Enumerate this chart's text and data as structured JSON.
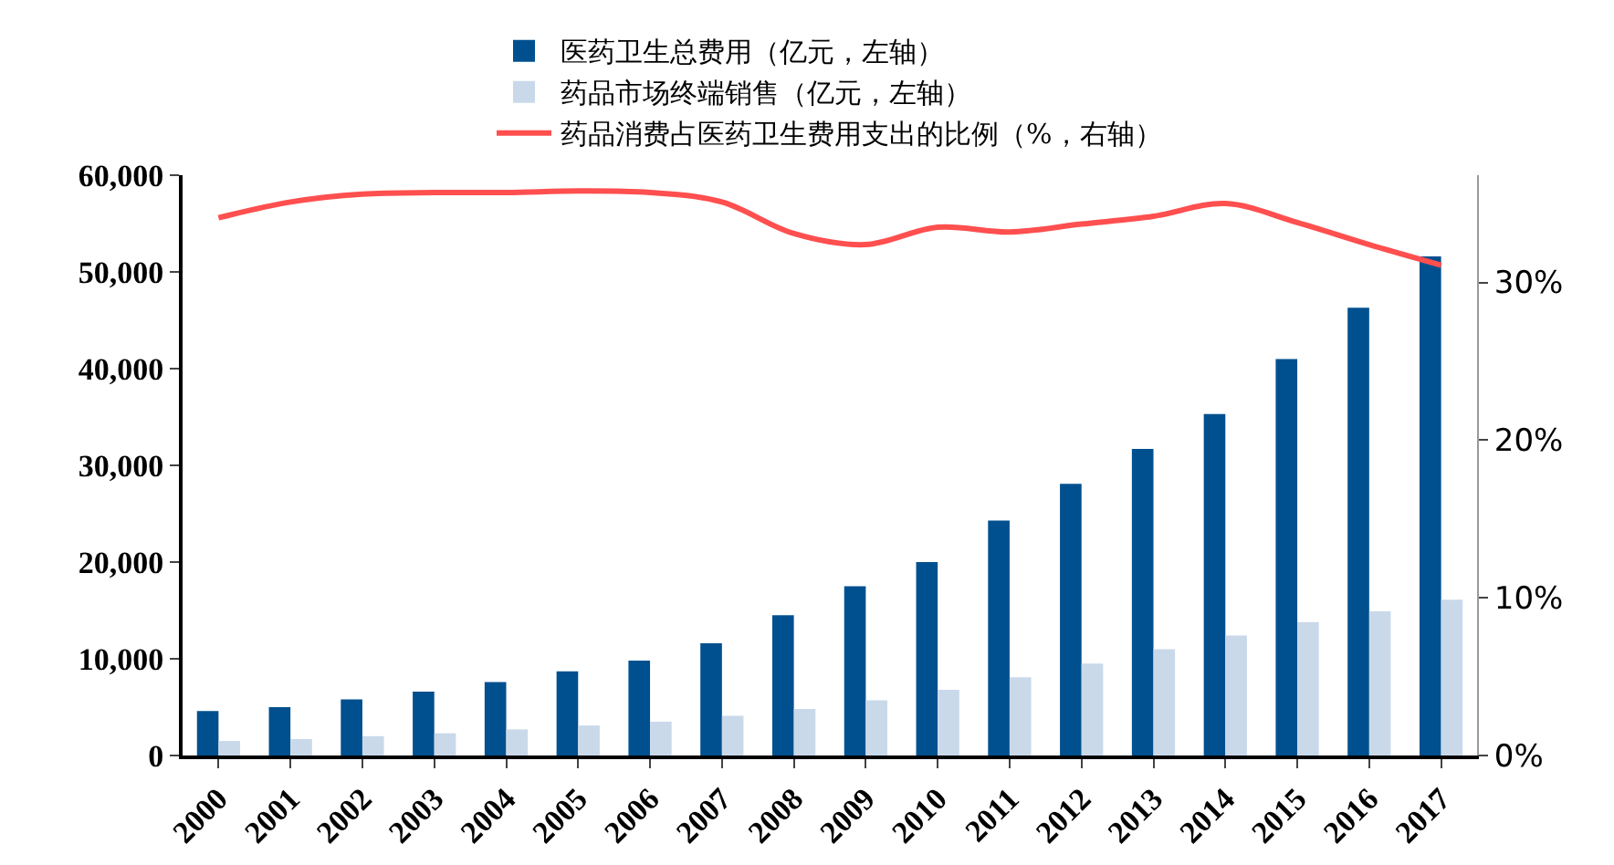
{
  "chart_data": {
    "type": "bar",
    "categories": [
      "2000",
      "2001",
      "2002",
      "2003",
      "2004",
      "2005",
      "2006",
      "2007",
      "2008",
      "2009",
      "2010",
      "2011",
      "2012",
      "2013",
      "2014",
      "2015",
      "2016",
      "2017"
    ],
    "series": [
      {
        "name": "医药卫生总费用（亿元，左轴）",
        "color": "#00508f",
        "values": [
          4600,
          5000,
          5800,
          6600,
          7600,
          8700,
          9800,
          11600,
          14500,
          17500,
          20000,
          24300,
          28100,
          31700,
          35300,
          41000,
          46300,
          51600
        ]
      },
      {
        "name": "药品市场终端销售（亿元，左轴）",
        "color": "#c9d9ea",
        "values": [
          1500,
          1700,
          2000,
          2300,
          2700,
          3100,
          3500,
          4100,
          4800,
          5700,
          6800,
          8100,
          9500,
          11000,
          12400,
          13800,
          14900,
          16100
        ]
      },
      {
        "name": "药品消费占医药卫生费用支出的比例（%，右轴）",
        "type": "line",
        "axis": "y2",
        "color": "#ff4f4f",
        "values": [
          34.1,
          35.1,
          35.6,
          35.7,
          35.7,
          35.8,
          35.7,
          35.1,
          33.1,
          32.4,
          33.5,
          33.2,
          33.7,
          34.2,
          35.0,
          33.8,
          32.4,
          31.1
        ]
      }
    ],
    "ylim": [
      0,
      60000
    ],
    "yticks": [
      {
        "value": 0,
        "label": "0"
      },
      {
        "value": 10000,
        "label": "10,000"
      },
      {
        "value": 20000,
        "label": "20,000"
      },
      {
        "value": 30000,
        "label": "30,000"
      },
      {
        "value": 40000,
        "label": "40,000"
      },
      {
        "value": 50000,
        "label": "50,000"
      },
      {
        "value": 60000,
        "label": "60,000"
      }
    ],
    "y2lim": [
      0,
      36.8
    ],
    "y2ticks": [
      {
        "value": 0,
        "label": "0%"
      },
      {
        "value": 10,
        "label": "10%"
      },
      {
        "value": 20,
        "label": "20%"
      },
      {
        "value": 30,
        "label": "30%"
      }
    ],
    "grid": false,
    "legend": "top",
    "marker": "none",
    "line_style": "solid"
  }
}
